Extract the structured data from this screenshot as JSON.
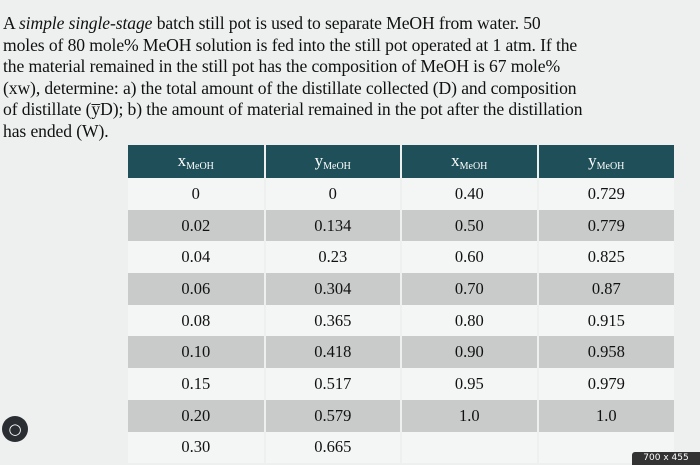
{
  "problem": {
    "line1_lead": "A ",
    "line1_italic": "simple single-stage",
    "line1_rest": " batch still pot is used to separate MeOH from water. 50",
    "line2": "moles of 80 mole% MeOH solution is fed into the still pot operated at 1 atm. If the",
    "line3": "the material remained in the still pot has the composition of MeOH is 67 mole%",
    "line4": "(xw), determine: a) the total amount of the distillate collected (D) and composition",
    "line5": "of distillate (y̅D); b) the amount of material remained in the pot after the distillation",
    "line6": "has ended (W)."
  },
  "table": {
    "headers": [
      {
        "main": "x",
        "sub": "MeOH"
      },
      {
        "main": "y",
        "sub": "MeOH"
      },
      {
        "main": "x",
        "sub": "MeOH"
      },
      {
        "main": "y",
        "sub": "MeOH"
      }
    ],
    "rows": [
      [
        "0",
        "0",
        "0.40",
        "0.729"
      ],
      [
        "0.02",
        "0.134",
        "0.50",
        "0.779"
      ],
      [
        "0.04",
        "0.23",
        "0.60",
        "0.825"
      ],
      [
        "0.06",
        "0.304",
        "0.70",
        "0.87"
      ],
      [
        "0.08",
        "0.365",
        "0.80",
        "0.915"
      ],
      [
        "0.10",
        "0.418",
        "0.90",
        "0.958"
      ],
      [
        "0.15",
        "0.517",
        "0.95",
        "0.979"
      ],
      [
        "0.20",
        "0.579",
        "1.0",
        "1.0"
      ],
      [
        "0.30",
        "0.665",
        "",
        ""
      ]
    ]
  },
  "badge": {
    "text": "700 x 455"
  },
  "icons": {
    "corner": "image-search-icon"
  }
}
